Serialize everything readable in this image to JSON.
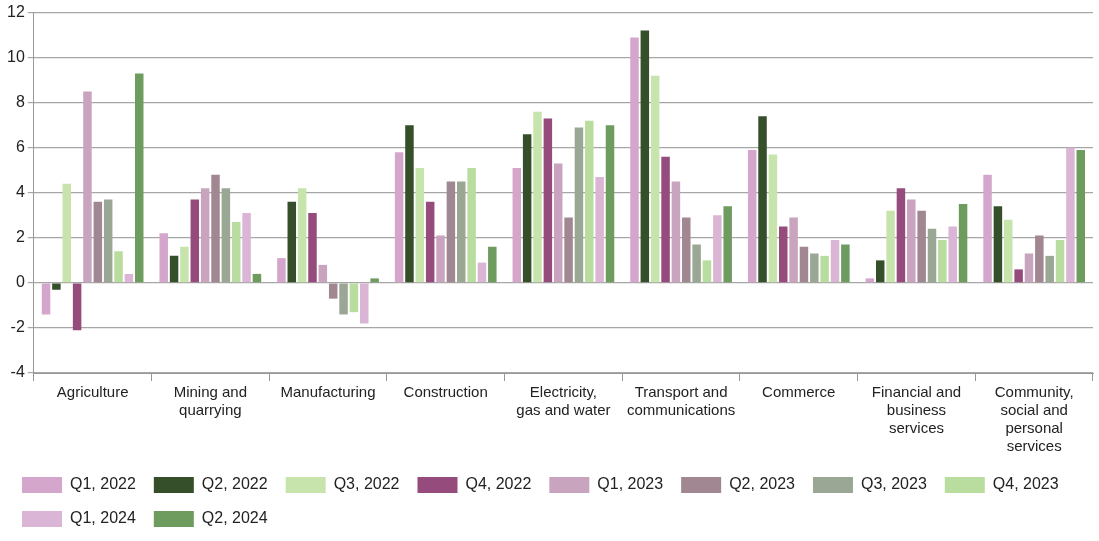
{
  "chart_data": {
    "type": "bar",
    "categories": [
      "Agriculture",
      "Mining and quarrying",
      "Manufacturing",
      "Construction",
      "Electricity, gas and water",
      "Transport and communications",
      "Commerce",
      "Financial and business services",
      "Community, social and personal services"
    ],
    "ylim": [
      -4,
      12
    ],
    "yticks": [
      -4,
      -2,
      0,
      2,
      4,
      6,
      8,
      10,
      12
    ],
    "grid": "y",
    "legend": "bottom",
    "series": [
      {
        "name": "Q1, 2022",
        "color": "#d5a6cc",
        "values": [
          -1.4,
          2.2,
          1.1,
          5.8,
          5.1,
          10.9,
          5.9,
          0.2,
          4.8
        ]
      },
      {
        "name": "Q2, 2022",
        "color": "#354f2a",
        "values": [
          -0.3,
          1.2,
          3.6,
          7.0,
          6.6,
          11.2,
          7.4,
          1.0,
          3.4
        ]
      },
      {
        "name": "Q3, 2022",
        "color": "#c8e4ad",
        "values": [
          4.4,
          1.6,
          4.2,
          5.1,
          7.6,
          9.2,
          5.7,
          3.2,
          2.8
        ]
      },
      {
        "name": "Q4, 2022",
        "color": "#964b7d",
        "values": [
          -2.1,
          3.7,
          3.1,
          3.6,
          7.3,
          5.6,
          2.5,
          4.2,
          0.6
        ]
      },
      {
        "name": "Q1, 2023",
        "color": "#c9a4be",
        "values": [
          8.5,
          4.2,
          0.8,
          2.1,
          5.3,
          4.5,
          2.9,
          3.7,
          1.3
        ]
      },
      {
        "name": "Q2, 2023",
        "color": "#a08792",
        "values": [
          3.6,
          4.8,
          -0.7,
          4.5,
          2.9,
          2.9,
          1.6,
          3.2,
          2.1
        ]
      },
      {
        "name": "Q3, 2023",
        "color": "#9aa794",
        "values": [
          3.7,
          4.2,
          -1.4,
          4.5,
          6.9,
          1.7,
          1.3,
          2.4,
          1.2
        ]
      },
      {
        "name": "Q4, 2023",
        "color": "#b9dd9e",
        "values": [
          1.4,
          2.7,
          -1.3,
          5.1,
          7.2,
          1.0,
          1.2,
          1.9,
          1.9
        ]
      },
      {
        "name": "Q1, 2024",
        "color": "#dbb5d5",
        "values": [
          0.4,
          3.1,
          -1.8,
          0.9,
          4.7,
          3.0,
          1.9,
          2.5,
          6.0
        ]
      },
      {
        "name": "Q2, 2024",
        "color": "#6e9b5e",
        "values": [
          9.3,
          0.4,
          0.2,
          1.6,
          7.0,
          3.4,
          1.7,
          3.5,
          5.9
        ]
      }
    ]
  }
}
